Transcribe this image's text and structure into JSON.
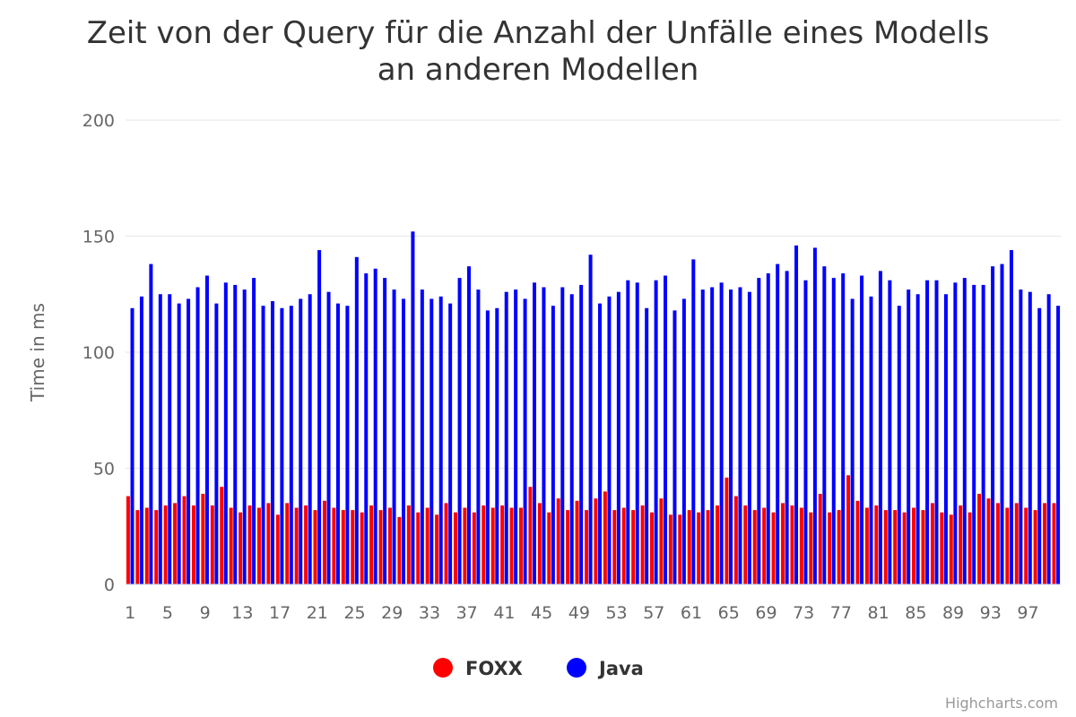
{
  "chart_data": {
    "type": "bar",
    "title": "Zeit von der Query für die Anzahl der Unfälle eines Modells an anderen Modellen",
    "title_lines": [
      "Zeit von der Query für die Anzahl der Unfälle eines Modells",
      "an anderen Modellen"
    ],
    "ylabel": "Time in ms",
    "xlabel": "",
    "ylim": [
      0,
      200
    ],
    "yticks": [
      0,
      50,
      100,
      150,
      200
    ],
    "grid": true,
    "legend_position": "bottom-center",
    "categories": [
      "1",
      "2",
      "3",
      "4",
      "5",
      "6",
      "7",
      "8",
      "9",
      "10",
      "11",
      "12",
      "13",
      "14",
      "15",
      "16",
      "17",
      "18",
      "19",
      "20",
      "21",
      "22",
      "23",
      "24",
      "25",
      "26",
      "27",
      "28",
      "29",
      "30",
      "31",
      "32",
      "33",
      "34",
      "35",
      "36",
      "37",
      "38",
      "39",
      "40",
      "41",
      "42",
      "43",
      "44",
      "45",
      "46",
      "47",
      "48",
      "49",
      "50",
      "51",
      "52",
      "53",
      "54",
      "55",
      "56",
      "57",
      "58",
      "59",
      "60",
      "61",
      "62",
      "63",
      "64",
      "65",
      "66",
      "67",
      "68",
      "69",
      "70",
      "71",
      "72",
      "73",
      "74",
      "75",
      "76",
      "77",
      "78",
      "79",
      "80",
      "81",
      "82",
      "83",
      "84",
      "85",
      "86",
      "87",
      "88",
      "89",
      "90",
      "91",
      "92",
      "93",
      "94",
      "95",
      "96",
      "97",
      "98",
      "99",
      "100"
    ],
    "xtick_labels": [
      "1",
      "5",
      "9",
      "13",
      "17",
      "21",
      "25",
      "29",
      "33",
      "37",
      "41",
      "45",
      "49",
      "53",
      "57",
      "61",
      "65",
      "69",
      "73",
      "77",
      "81",
      "85",
      "89",
      "93",
      "97"
    ],
    "series": [
      {
        "name": "FOXX",
        "color": "#ff0000",
        "values": [
          38,
          32,
          33,
          32,
          34,
          35,
          38,
          34,
          39,
          34,
          42,
          33,
          31,
          34,
          33,
          35,
          30,
          35,
          33,
          34,
          32,
          36,
          33,
          32,
          32,
          31,
          34,
          32,
          33,
          29,
          34,
          31,
          33,
          30,
          35,
          31,
          33,
          31,
          34,
          33,
          34,
          33,
          33,
          42,
          35,
          31,
          37,
          32,
          36,
          32,
          37,
          40,
          32,
          33,
          32,
          34,
          31,
          37,
          30,
          30,
          32,
          31,
          32,
          34,
          46,
          38,
          34,
          32,
          33,
          31,
          35,
          34,
          33,
          31,
          39,
          31,
          32,
          47,
          36,
          33,
          34,
          32,
          32,
          31,
          33,
          32,
          35,
          31,
          30,
          34,
          31,
          39,
          37,
          35,
          33,
          35,
          33,
          32,
          35,
          35
        ]
      },
      {
        "name": "Java",
        "color": "#0000ff",
        "values": [
          119,
          124,
          138,
          125,
          125,
          121,
          123,
          128,
          133,
          121,
          130,
          129,
          127,
          132,
          120,
          122,
          119,
          120,
          123,
          125,
          144,
          126,
          121,
          120,
          141,
          134,
          136,
          132,
          127,
          123,
          152,
          127,
          123,
          124,
          121,
          132,
          137,
          127,
          118,
          119,
          126,
          127,
          123,
          130,
          128,
          120,
          128,
          125,
          129,
          142,
          121,
          124,
          126,
          131,
          130,
          119,
          131,
          133,
          118,
          123,
          140,
          127,
          128,
          130,
          127,
          128,
          126,
          132,
          134,
          138,
          135,
          146,
          131,
          145,
          137,
          132,
          134,
          123,
          133,
          124,
          135,
          131,
          120,
          127,
          125,
          131,
          131,
          125,
          130,
          132,
          129,
          129,
          137,
          138,
          144,
          127,
          126,
          119,
          125,
          120
        ]
      }
    ],
    "credit": "Highcharts.com"
  }
}
